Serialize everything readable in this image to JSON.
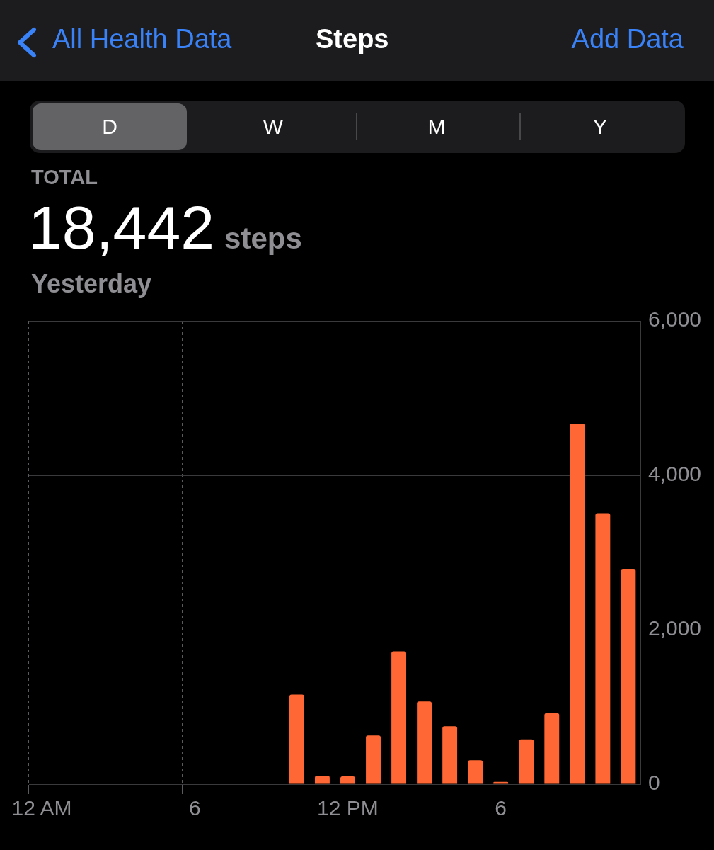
{
  "chart_data": {
    "type": "bar",
    "title": "Steps",
    "annotations": [
      "All Health Data",
      "Add Data",
      "D",
      "W",
      "M",
      "Y",
      "TOTAL",
      "18,442",
      "steps",
      "Yesterday"
    ],
    "categories": [
      "12 AM",
      null,
      null,
      null,
      null,
      null,
      "6",
      null,
      null,
      null,
      null,
      null,
      "12 PM",
      null,
      null,
      null,
      null,
      null,
      "6",
      null,
      null,
      null,
      null,
      null
    ],
    "values": [
      null,
      null,
      null,
      null,
      null,
      null,
      null,
      null,
      null,
      null,
      1160,
      110,
      100,
      630,
      1720,
      1070,
      750,
      310,
      30,
      580,
      920,
      4670,
      3510,
      2790
    ],
    "color": "#ff6835",
    "ylim": [
      0,
      6000
    ],
    "yticks": [
      {
        "value": 0,
        "label": "0"
      },
      {
        "value": 2000,
        "label": "2,000"
      },
      {
        "value": 4000,
        "label": "4,000"
      },
      {
        "value": 6000,
        "label": "6,000"
      }
    ],
    "grid": true,
    "legend": false
  }
}
